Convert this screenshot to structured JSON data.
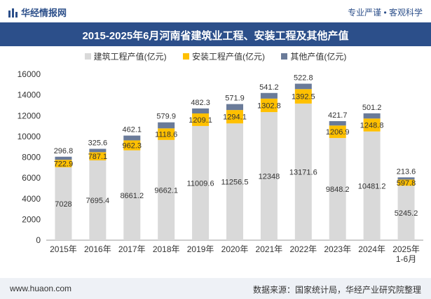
{
  "header": {
    "brand": "华经情报网",
    "tagline": "专业严谨 • 客观科学"
  },
  "footer": {
    "left": "www.huaon.com",
    "right": "数据来源：国家统计局，华经产业研究院整理"
  },
  "colors": {
    "construction": "#d9d9d9",
    "installation": "#ffc000",
    "other": "#6a7b99",
    "brand": "#2c4f8a"
  },
  "chart_data": {
    "type": "bar",
    "stacked": true,
    "title": "2015-2025年6月河南省建筑业工程、安装工程及其他产值",
    "categories": [
      "2015年",
      "2016年",
      "2017年",
      "2018年",
      "2019年",
      "2020年",
      "2021年",
      "2022年",
      "2023年",
      "2024年",
      "2025年1-6月"
    ],
    "series": [
      {
        "name": "建筑工程产值(亿元)",
        "values": [
          7028,
          7695.4,
          8661.2,
          9662.1,
          11009.6,
          11256.5,
          12348,
          13171.6,
          9848.2,
          10481.2,
          5245.2
        ]
      },
      {
        "name": "安装工程产值(亿元)",
        "values": [
          722.9,
          787.1,
          962.3,
          1118.6,
          1209.1,
          1294.1,
          1302.8,
          1392.5,
          1206.9,
          1248.8,
          597.8
        ]
      },
      {
        "name": "其他产值(亿元)",
        "values": [
          296.8,
          325.6,
          462.1,
          579.9,
          482.3,
          571.9,
          541.2,
          522.8,
          421.7,
          501.2,
          213.6
        ]
      }
    ],
    "ylim": [
      0,
      16000
    ],
    "yticks": [
      0,
      2000,
      4000,
      6000,
      8000,
      10000,
      12000,
      14000,
      16000
    ],
    "legend_position": "top",
    "grid": false
  }
}
